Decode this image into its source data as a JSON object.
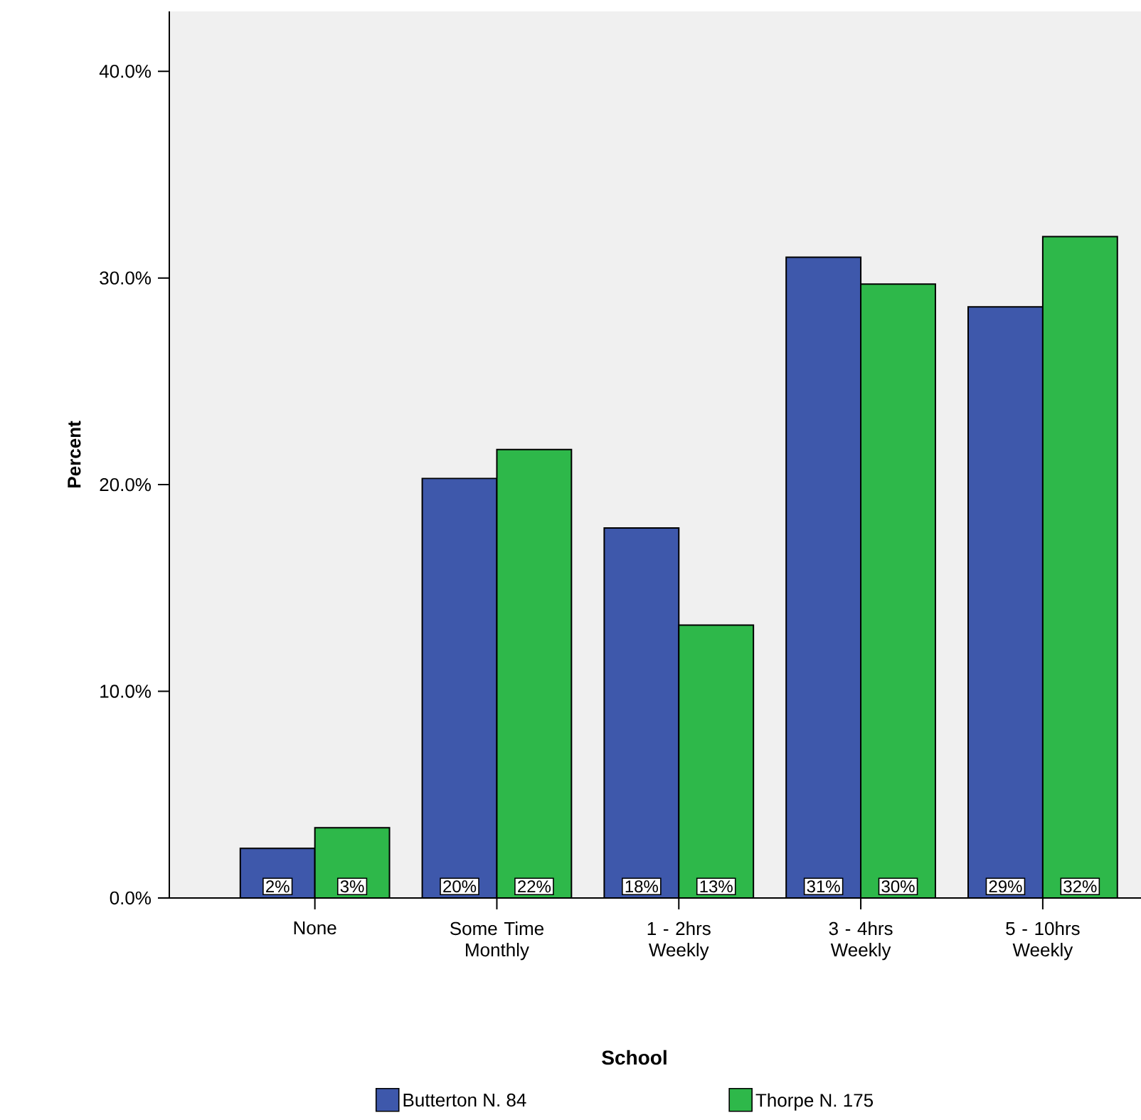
{
  "chart_data": {
    "type": "bar",
    "categories": [
      "None",
      "Some Time Monthly",
      "1 - 2hrs Weekly",
      "3 - 4hrs Weekly",
      "5 - 10hrs Weekly"
    ],
    "series": [
      {
        "name": "Butterton N. 84",
        "color": "#3e58ab",
        "values": [
          2.4,
          20.3,
          17.9,
          31.0,
          28.6
        ],
        "value_labels": [
          "2%",
          "20%",
          "18%",
          "31%",
          "29%"
        ]
      },
      {
        "name": "Thorpe N. 175",
        "color": "#2eb84a",
        "values": [
          3.4,
          21.7,
          13.2,
          29.7,
          32.0
        ],
        "value_labels": [
          "3%",
          "22%",
          "13%",
          "30%",
          "32%"
        ]
      }
    ],
    "ylabel": "Percent",
    "legend_title": "School",
    "legend": "bottom",
    "ylim": [
      0,
      42.9
    ],
    "yticks": [
      {
        "value": 0,
        "label": "0.0%"
      },
      {
        "value": 10,
        "label": "10.0%"
      },
      {
        "value": 20,
        "label": "20.0%"
      },
      {
        "value": 30,
        "label": "30.0%"
      },
      {
        "value": 40,
        "label": "40.0%"
      }
    ],
    "grid": false
  }
}
